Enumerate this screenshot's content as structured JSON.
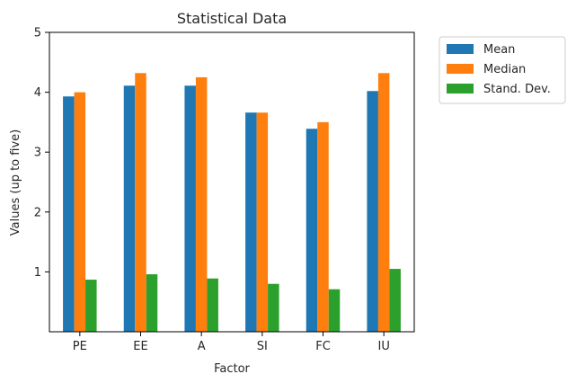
{
  "chart_data": {
    "type": "bar",
    "title": "Statistical Data",
    "xlabel": "Factor",
    "ylabel": "Values (up to five)",
    "categories": [
      "PE",
      "EE",
      "A",
      "SI",
      "FC",
      "IU"
    ],
    "series": [
      {
        "name": "Mean",
        "color": "#1f77b4",
        "values": [
          3.93,
          4.11,
          4.11,
          3.66,
          3.39,
          4.02
        ]
      },
      {
        "name": "Median",
        "color": "#ff7f0e",
        "values": [
          4.0,
          4.32,
          4.25,
          3.66,
          3.5,
          4.32
        ]
      },
      {
        "name": "Stand. Dev.",
        "color": "#2ca02c",
        "values": [
          0.87,
          0.96,
          0.89,
          0.8,
          0.71,
          1.05
        ]
      }
    ],
    "ylim": [
      0,
      5
    ],
    "yticks": [
      "1",
      "2",
      "3",
      "4",
      "5"
    ],
    "grid": false,
    "legend_position": "outside-right"
  }
}
